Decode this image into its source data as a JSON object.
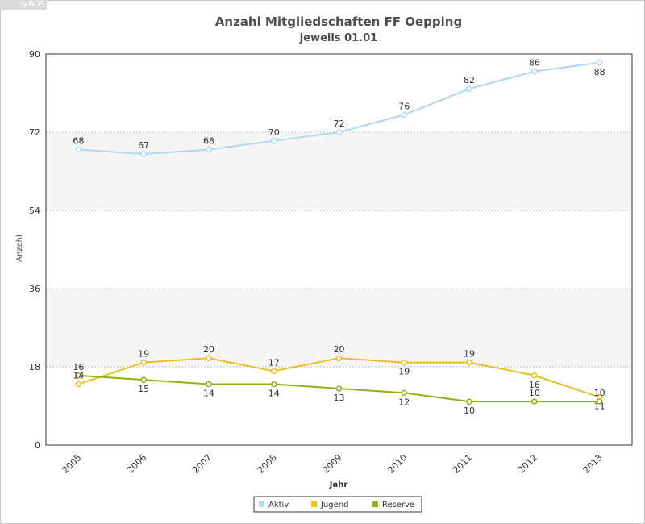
{
  "brand": {
    "label": "syBOS"
  },
  "chart_data": {
    "type": "line",
    "title": "Anzahl Mitgliedschaften FF Oepping",
    "subtitle": "jeweils 01.01",
    "xlabel": "Jahr",
    "ylabel": "Anzahl",
    "categories": [
      "2005",
      "2006",
      "2007",
      "2008",
      "2009",
      "2010",
      "2011",
      "2012",
      "2013"
    ],
    "ylim": [
      0,
      90
    ],
    "yticks": [
      0,
      18,
      36,
      54,
      72,
      90
    ],
    "grid": true,
    "legend_position": "bottom-center",
    "series": [
      {
        "name": "Aktiv",
        "color": "#aed8ef",
        "values": [
          68,
          67,
          68,
          70,
          72,
          76,
          82,
          86,
          88
        ],
        "label_pos": [
          "above",
          "above",
          "above",
          "above",
          "above",
          "above",
          "above",
          "above",
          "below"
        ]
      },
      {
        "name": "Jugend",
        "color": "#ecbf21",
        "values": [
          14,
          19,
          20,
          17,
          20,
          19,
          19,
          16,
          11
        ],
        "label_pos": [
          "above",
          "above",
          "above",
          "above",
          "above",
          "below",
          "above",
          "below",
          "below"
        ]
      },
      {
        "name": "Reserve",
        "color": "#8db315",
        "values": [
          16,
          15,
          14,
          14,
          13,
          12,
          10,
          10,
          10
        ],
        "label_pos": [
          "above",
          "below",
          "below",
          "below",
          "below",
          "below",
          "below",
          "above",
          "above"
        ]
      }
    ]
  }
}
